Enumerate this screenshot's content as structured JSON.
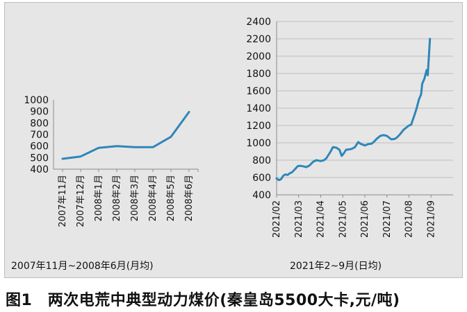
{
  "caption": "图1　两次电荒中典型动力煤价(秦皇岛5500大卡,元/吨)",
  "chart_data": [
    {
      "type": "line",
      "subtitle": "2007年11月~2008年6月(月均)",
      "categories": [
        "2007年11月",
        "2007年12月",
        "2008年1月",
        "2008年2月",
        "2008年3月",
        "2008年4月",
        "2008年5月",
        "2008年6月"
      ],
      "series": [
        {
          "values": [
            490,
            510,
            585,
            600,
            590,
            590,
            680,
            895
          ]
        }
      ],
      "yticks": [
        400,
        500,
        600,
        700,
        800,
        900,
        1000
      ],
      "ylim": [
        400,
        1000
      ],
      "grid": false,
      "color": "#2f86b8"
    },
    {
      "type": "line",
      "subtitle": "2021年2~9月(日均)",
      "categories": [
        "2021/02",
        "2021/03",
        "2021/04",
        "2021/05",
        "2021/06",
        "2021/07",
        "2021/08",
        "2021/09"
      ],
      "series": [
        {
          "points": [
            [
              0.0,
              590
            ],
            [
              0.1,
              570
            ],
            [
              0.2,
              580
            ],
            [
              0.3,
              620
            ],
            [
              0.4,
              635
            ],
            [
              0.5,
              630
            ],
            [
              0.6,
              650
            ],
            [
              0.7,
              660
            ],
            [
              0.85,
              700
            ],
            [
              0.95,
              730
            ],
            [
              1.05,
              735
            ],
            [
              1.2,
              730
            ],
            [
              1.35,
              720
            ],
            [
              1.5,
              740
            ],
            [
              1.65,
              780
            ],
            [
              1.8,
              800
            ],
            [
              2.0,
              790
            ],
            [
              2.15,
              800
            ],
            [
              2.25,
              820
            ],
            [
              2.35,
              860
            ],
            [
              2.45,
              900
            ],
            [
              2.55,
              950
            ],
            [
              2.7,
              945
            ],
            [
              2.85,
              920
            ],
            [
              2.95,
              850
            ],
            [
              3.05,
              880
            ],
            [
              3.15,
              920
            ],
            [
              3.3,
              925
            ],
            [
              3.4,
              930
            ],
            [
              3.55,
              950
            ],
            [
              3.65,
              990
            ],
            [
              3.7,
              1010
            ],
            [
              3.8,
              990
            ],
            [
              3.9,
              980
            ],
            [
              4.0,
              970
            ],
            [
              4.15,
              985
            ],
            [
              4.3,
              990
            ],
            [
              4.4,
              1010
            ],
            [
              4.55,
              1050
            ],
            [
              4.7,
              1080
            ],
            [
              4.85,
              1090
            ],
            [
              5.0,
              1080
            ],
            [
              5.1,
              1060
            ],
            [
              5.2,
              1040
            ],
            [
              5.35,
              1045
            ],
            [
              5.45,
              1060
            ],
            [
              5.6,
              1100
            ],
            [
              5.75,
              1150
            ],
            [
              5.9,
              1180
            ],
            [
              6.0,
              1200
            ],
            [
              6.1,
              1210
            ],
            [
              6.15,
              1250
            ],
            [
              6.25,
              1320
            ],
            [
              6.35,
              1400
            ],
            [
              6.45,
              1500
            ],
            [
              6.55,
              1560
            ],
            [
              6.6,
              1680
            ],
            [
              6.7,
              1740
            ],
            [
              6.8,
              1840
            ],
            [
              6.85,
              1780
            ],
            [
              6.95,
              2200
            ]
          ]
        }
      ],
      "yticks": [
        400,
        600,
        800,
        1000,
        1200,
        1400,
        1600,
        1800,
        2000,
        2200,
        2400
      ],
      "ylim": [
        400,
        2400
      ],
      "grid": true,
      "color": "#2f86b8"
    }
  ]
}
